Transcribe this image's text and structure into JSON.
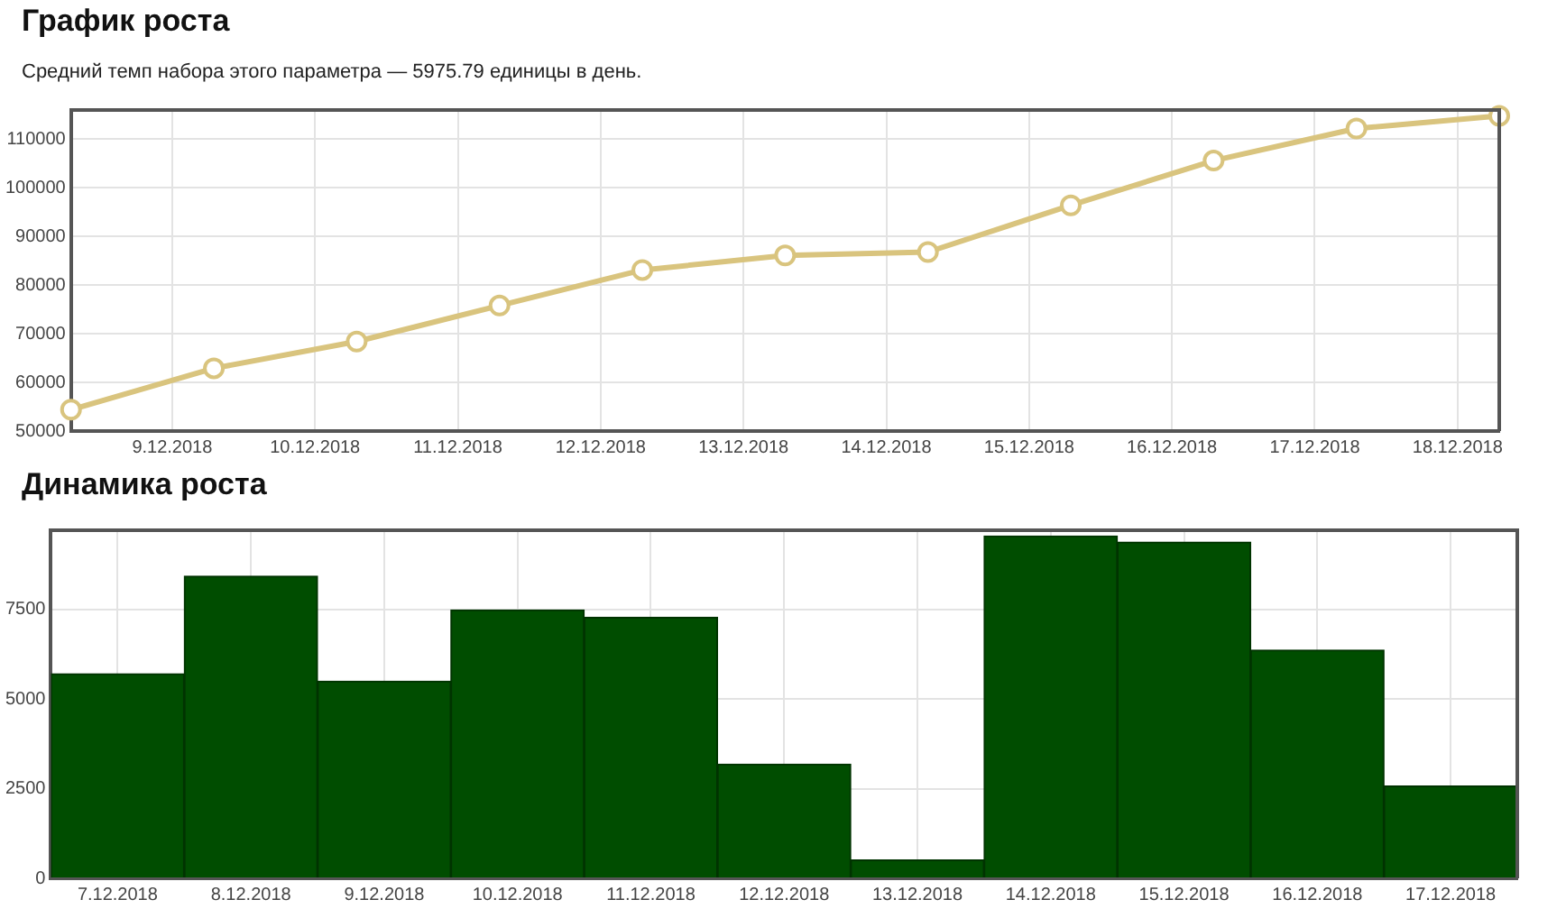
{
  "chart_data": [
    {
      "type": "line",
      "title": "График роста",
      "subtitle": "Средний темп набора этого параметра — 5975.79 единицы в день.",
      "x": [
        "2018-12-08T07:00",
        "2018-12-09T07:00",
        "2018-12-10T07:00",
        "2018-12-11T07:00",
        "2018-12-12T07:00",
        "2018-12-13T07:00",
        "2018-12-14T07:00",
        "2018-12-15T07:00",
        "2018-12-16T07:00",
        "2018-12-17T07:00",
        "2018-12-18T07:00"
      ],
      "series": [
        {
          "color": "#d9c47e",
          "values": [
            54400,
            62900,
            68400,
            75800,
            83100,
            86100,
            86800,
            96400,
            105600,
            112200,
            114800
          ]
        }
      ],
      "xlim": [
        "2018-12-08T07:00",
        "2018-12-18T07:00"
      ],
      "xticks": [
        {
          "value": "2018-12-09",
          "label": "9.12.2018"
        },
        {
          "value": "2018-12-10",
          "label": "10.12.2018"
        },
        {
          "value": "2018-12-11",
          "label": "11.12.2018"
        },
        {
          "value": "2018-12-12",
          "label": "12.12.2018"
        },
        {
          "value": "2018-12-13",
          "label": "13.12.2018"
        },
        {
          "value": "2018-12-14",
          "label": "14.12.2018"
        },
        {
          "value": "2018-12-15",
          "label": "15.12.2018"
        },
        {
          "value": "2018-12-16",
          "label": "16.12.2018"
        },
        {
          "value": "2018-12-17",
          "label": "17.12.2018"
        },
        {
          "value": "2018-12-18",
          "label": "18.12.2018"
        }
      ],
      "ylim": [
        50000,
        116000
      ],
      "yticks": [
        50000,
        60000,
        70000,
        80000,
        90000,
        100000,
        110000
      ],
      "grid": true,
      "marker": "circle"
    },
    {
      "type": "bar",
      "title": "Динамика роста",
      "categories": [
        "7.12.2018",
        "8.12.2018",
        "9.12.2018",
        "10.12.2018",
        "11.12.2018",
        "12.12.2018",
        "13.12.2018",
        "14.12.2018",
        "15.12.2018",
        "16.12.2018",
        "17.12.2018"
      ],
      "values": [
        5700,
        8420,
        5490,
        7480,
        7270,
        3180,
        510,
        9540,
        9370,
        6360,
        2570
      ],
      "color": "#004d00",
      "ylim": [
        0,
        9700
      ],
      "yticks": [
        0,
        2500,
        5000,
        7500
      ],
      "grid": true
    }
  ]
}
